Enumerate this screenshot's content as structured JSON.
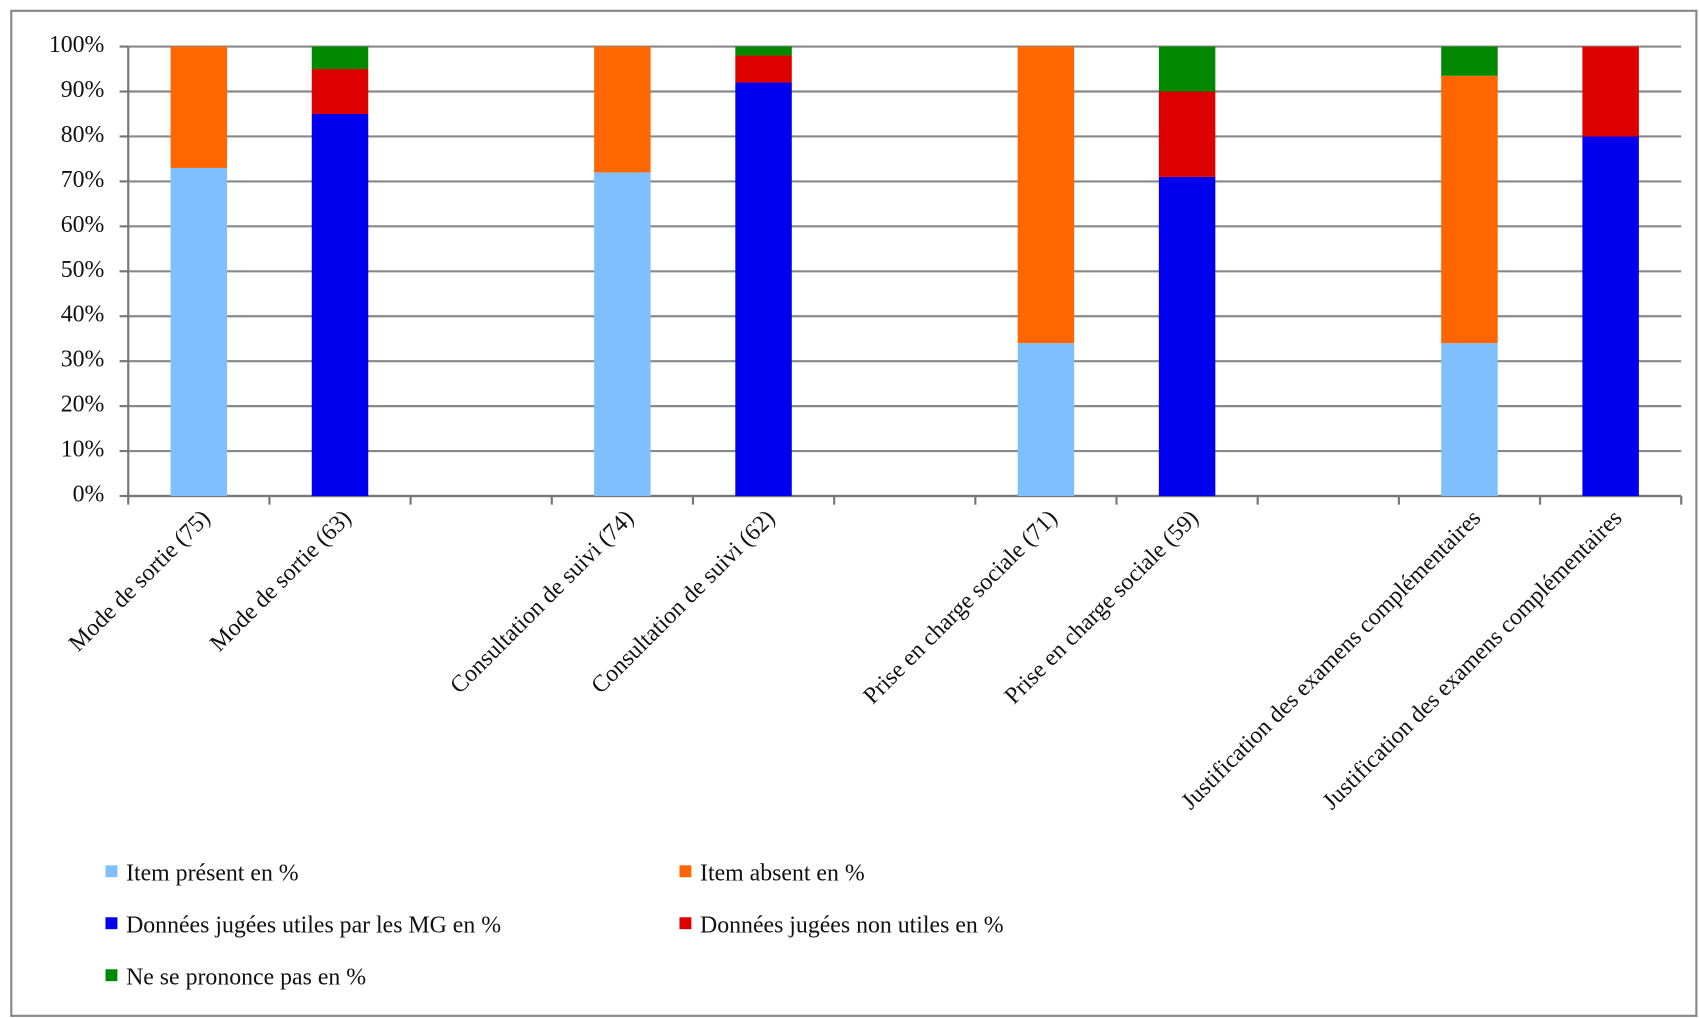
{
  "chart_data": {
    "type": "stacked_bar",
    "categories": [
      "Mode de sortie (75)",
      "Mode de sortie (63)",
      null,
      "Consultation de suivi (74)",
      "Consultation de suivi (62)",
      null,
      "Prise en charge sociale (71)",
      "Prise en charge sociale (59)",
      null,
      "Justification des examens complémentaires",
      "Justification des examens complémentaires"
    ],
    "series": [
      {
        "name": "Item présent en %",
        "color": "#7fbfff",
        "values": [
          73,
          null,
          null,
          72,
          null,
          null,
          34,
          null,
          null,
          34,
          null
        ]
      },
      {
        "name": "Item absent en %",
        "color": "#ff6600",
        "values": [
          27,
          null,
          null,
          28,
          null,
          null,
          66,
          null,
          null,
          59.5,
          null
        ]
      },
      {
        "name": "Données jugées utiles par les MG en %",
        "color": "#0000ee",
        "values": [
          null,
          85,
          null,
          null,
          92,
          null,
          null,
          71,
          null,
          null,
          80
        ]
      },
      {
        "name": "Données jugées non utiles en %",
        "color": "#dd0000",
        "values": [
          null,
          10,
          null,
          null,
          6,
          null,
          null,
          19,
          null,
          null,
          20
        ]
      },
      {
        "name": "Ne se prononce pas en %",
        "color": "#008800",
        "values": [
          null,
          5,
          null,
          null,
          2,
          null,
          null,
          10,
          null,
          6.5,
          null
        ]
      }
    ],
    "ylim": [
      0,
      100
    ],
    "yticks": [
      {
        "value": 0,
        "label": "0%"
      },
      {
        "value": 10,
        "label": "10%"
      },
      {
        "value": 20,
        "label": "20%"
      },
      {
        "value": 30,
        "label": "30%"
      },
      {
        "value": 40,
        "label": "40%"
      },
      {
        "value": 50,
        "label": "50%"
      },
      {
        "value": 60,
        "label": "60%"
      },
      {
        "value": 70,
        "label": "70%"
      },
      {
        "value": 80,
        "label": "80%"
      },
      {
        "value": 90,
        "label": "90%"
      },
      {
        "value": 100,
        "label": "100%"
      }
    ],
    "grid": true
  }
}
